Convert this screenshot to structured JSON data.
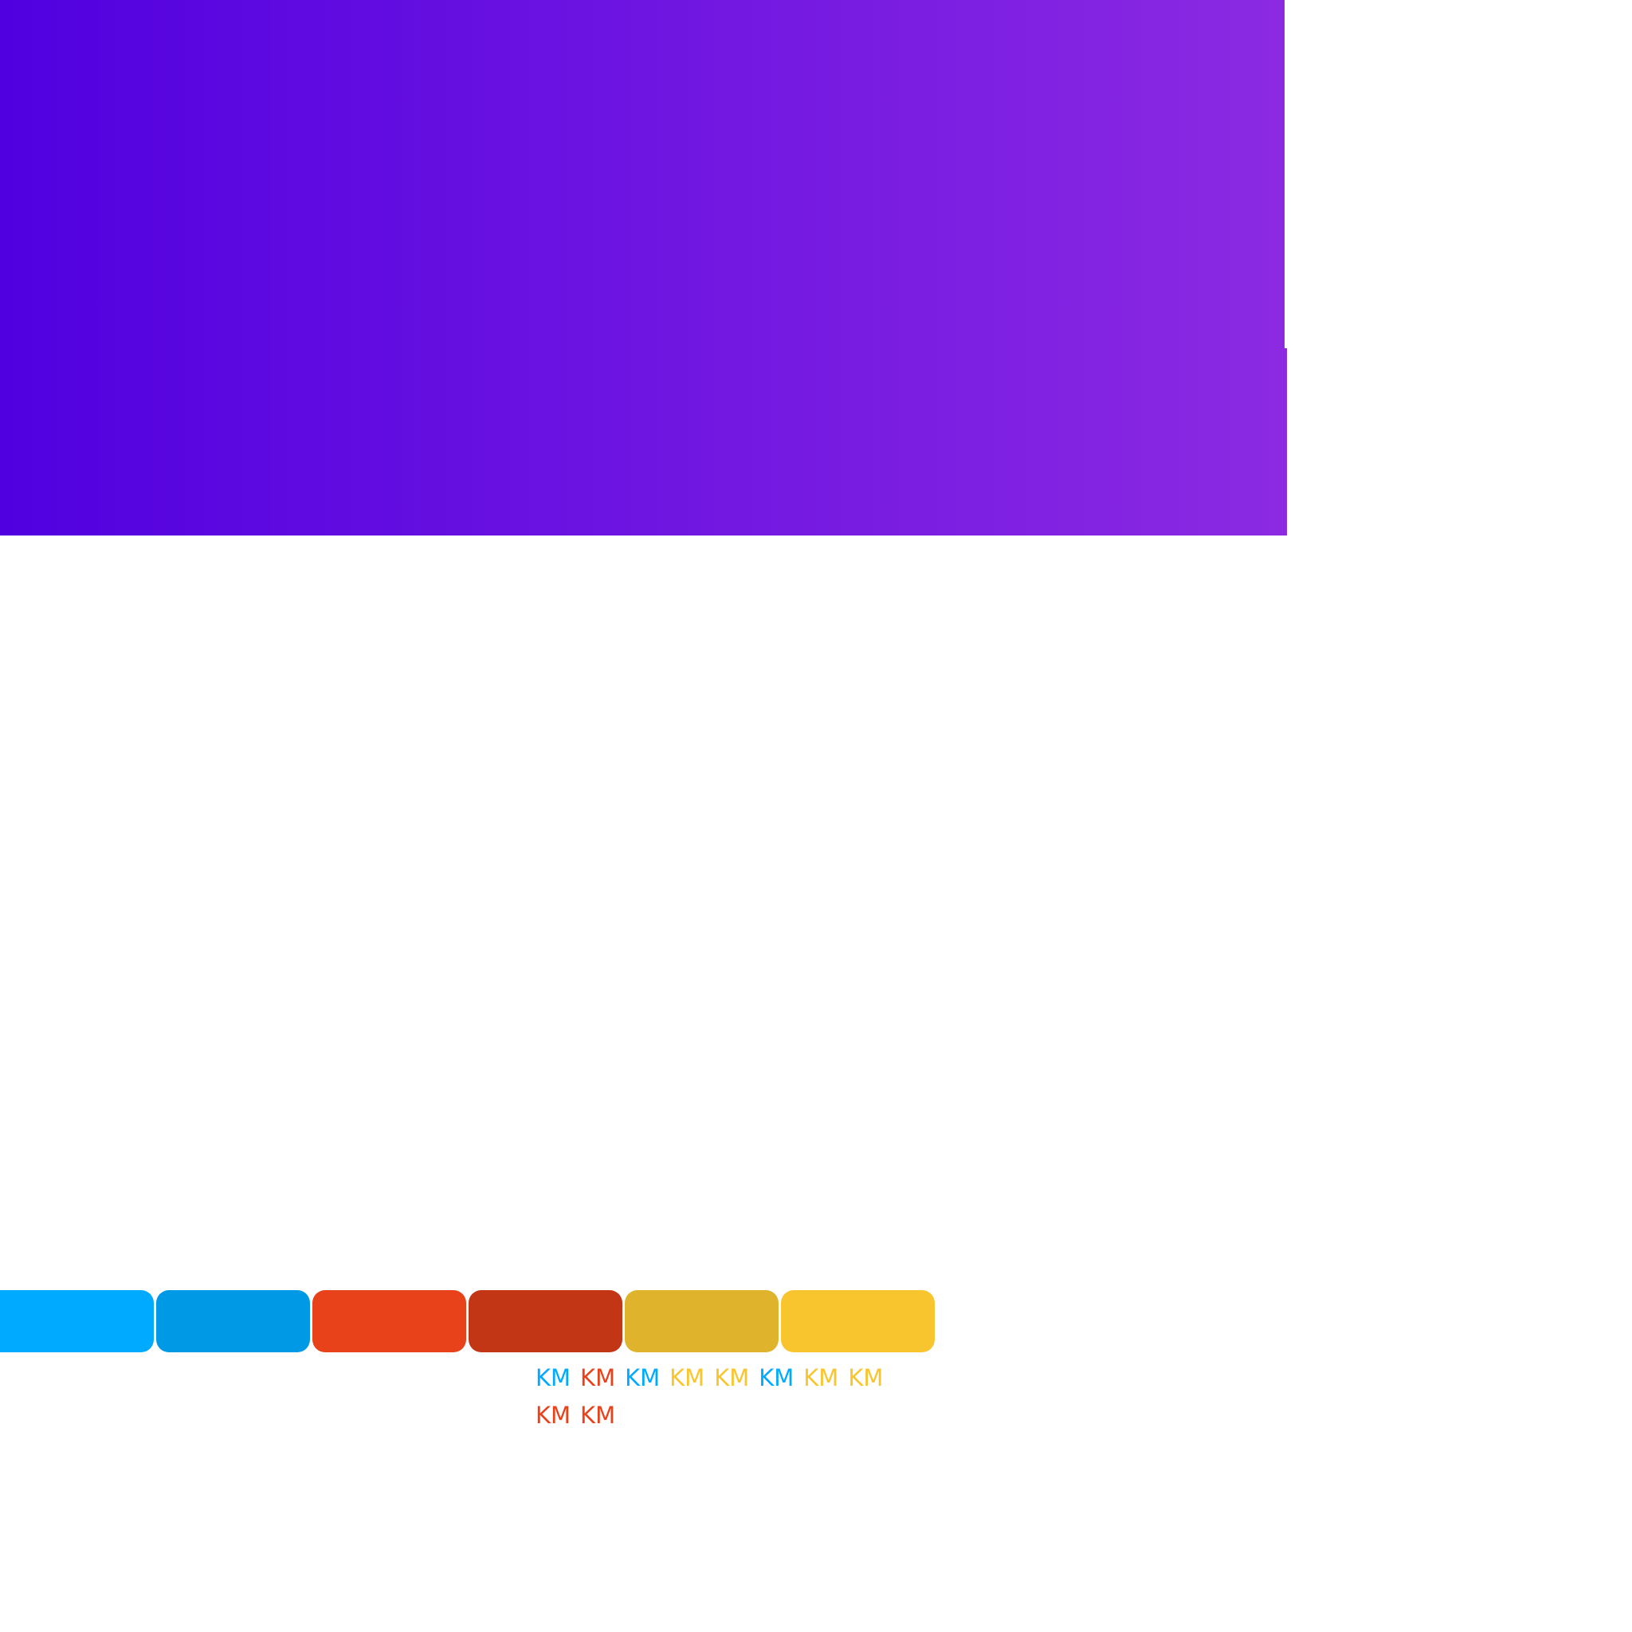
{
  "hero": {
    "gradient_start": "#5000e0",
    "gradient_end": "#8c2ae2"
  },
  "swatches": [
    {
      "color": "#00aaff"
    },
    {
      "color": "#0099e6"
    },
    {
      "color": "#e8421a"
    },
    {
      "color": "#c33615"
    },
    {
      "color": "#e0b32c"
    },
    {
      "color": "#f9c52f"
    }
  ],
  "km_labels": [
    {
      "text": "KM",
      "color": "#00aaff"
    },
    {
      "text": "KM",
      "color": "#e8421a"
    },
    {
      "text": "KM",
      "color": "#00aaff"
    },
    {
      "text": "KM",
      "color": "#f9c52f"
    },
    {
      "text": "KM",
      "color": "#f9c52f"
    },
    {
      "text": "KM",
      "color": "#00aaff"
    },
    {
      "text": "KM",
      "color": "#f9c52f"
    },
    {
      "text": "KM",
      "color": "#f9c52f"
    },
    {
      "text": "KM",
      "color": "#e8421a"
    },
    {
      "text": "KM",
      "color": "#e8421a"
    }
  ]
}
